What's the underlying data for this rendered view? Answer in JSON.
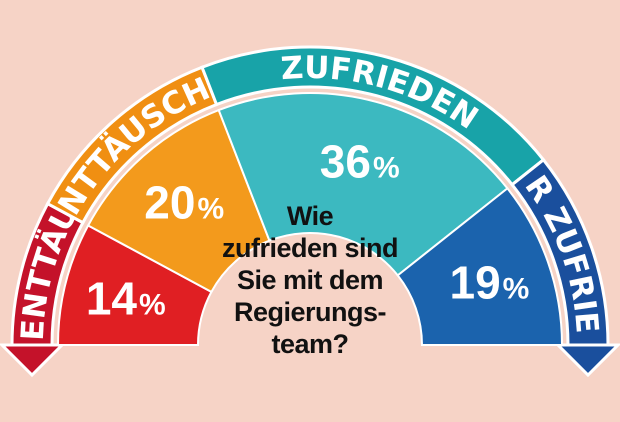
{
  "chart_data": {
    "type": "pie",
    "categories": [
      "SEHR ENTTÄUSCHT",
      "ENTTÄUSCHT",
      "ZUFRIEDEN",
      "SEHR ZUFRIEDEN"
    ],
    "values": [
      14,
      20,
      36,
      19
    ],
    "value_labels": [
      "14%",
      "20%",
      "36%",
      "19%"
    ],
    "unit": "%",
    "title": "Wie zufrieden sind Sie mit dem Regierungs-team?",
    "question_lines": [
      "Wie",
      "zufrieden sind",
      "Sie mit dem",
      "Regierungs-",
      "team?"
    ],
    "legend": "arc-bands"
  },
  "colors": {
    "background": "#f6d3c6",
    "segments": [
      "#e01f23",
      "#f39a1c",
      "#3cb9c0",
      "#1b63ad"
    ],
    "bands": [
      "#c4122a",
      "#f08f12",
      "#18a3a8",
      "#1a4f9d"
    ],
    "outline": "#ffffff"
  }
}
